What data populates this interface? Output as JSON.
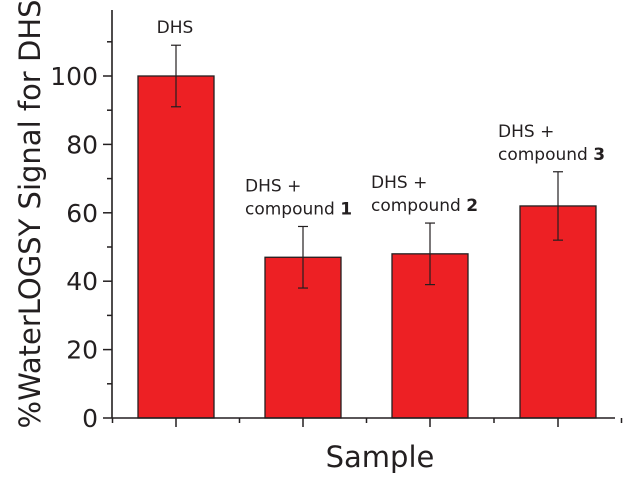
{
  "chart_data": {
    "type": "bar",
    "title": "",
    "xlabel": "Sample",
    "ylabel": "%WaterLOGSY Signal for DHS",
    "ylim": [
      0,
      115
    ],
    "yticks": [
      0,
      20,
      40,
      60,
      80,
      100
    ],
    "grid": false,
    "legend": "none",
    "bar_color": "#ed2024",
    "bars": [
      {
        "label_lines": [
          {
            "text": "DHS",
            "bold": ""
          }
        ],
        "value": 100,
        "error": 9
      },
      {
        "label_lines": [
          {
            "text": "DHS +",
            "bold": ""
          },
          {
            "text": "compound ",
            "bold": "1"
          }
        ],
        "value": 47,
        "error": 9
      },
      {
        "label_lines": [
          {
            "text": "DHS +",
            "bold": ""
          },
          {
            "text": "compound ",
            "bold": "2"
          }
        ],
        "value": 48,
        "error": 9
      },
      {
        "label_lines": [
          {
            "text": "DHS +",
            "bold": ""
          },
          {
            "text": "compound ",
            "bold": "3"
          }
        ],
        "value": 62,
        "error": 10
      }
    ]
  }
}
